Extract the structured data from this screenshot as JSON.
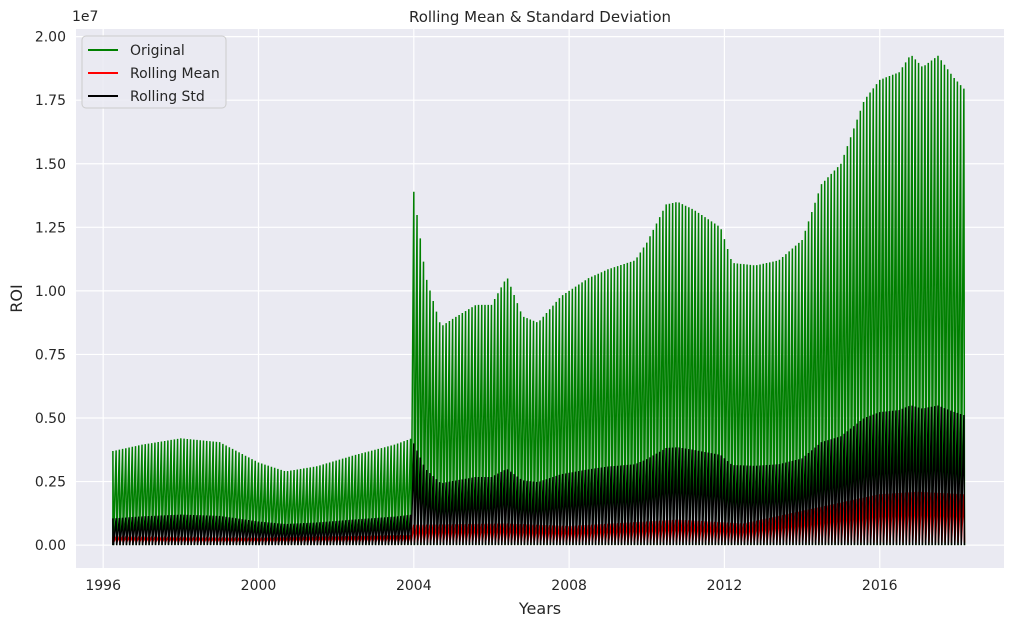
{
  "chart_data": {
    "type": "line",
    "title": "Rolling Mean & Standard Deviation",
    "xlabel": "Years",
    "ylabel": "ROI",
    "y_offset_label": "1e7",
    "xlim": [
      1995.3,
      2019.2
    ],
    "ylim": [
      -0.09,
      2.03
    ],
    "y_scale": 10000000,
    "x_ticks": [
      "1996",
      "2000",
      "2004",
      "2008",
      "2012",
      "2016"
    ],
    "y_ticks": [
      "0.00",
      "0.25",
      "0.50",
      "0.75",
      "1.00",
      "1.25",
      "1.50",
      "1.75",
      "2.00"
    ],
    "grid": true,
    "legend_position": "upper-left",
    "background": "#eaeaf2",
    "series": [
      {
        "name": "Original",
        "color": "#008000",
        "style": "dense-oscillating",
        "floor": 0,
        "envelope_x": [
          1996.25,
          1997.0,
          1998.0,
          1999.0,
          2000.0,
          2000.7,
          2001.5,
          2002.5,
          2003.5,
          2003.95,
          2004.0,
          2004.3,
          2004.7,
          2005.0,
          2005.6,
          2006.0,
          2006.4,
          2006.8,
          2007.2,
          2007.8,
          2008.5,
          2009.0,
          2009.7,
          2010.0,
          2010.5,
          2010.8,
          2011.2,
          2011.9,
          2012.2,
          2012.8,
          2013.4,
          2014.0,
          2014.5,
          2015.0,
          2015.6,
          2016.0,
          2016.5,
          2016.8,
          2017.1,
          2017.5,
          2017.9,
          2018.2
        ],
        "envelope_y": [
          0.37,
          0.395,
          0.42,
          0.405,
          0.325,
          0.29,
          0.31,
          0.355,
          0.395,
          0.42,
          1.39,
          1.06,
          0.86,
          0.89,
          0.945,
          0.945,
          1.055,
          0.9,
          0.875,
          0.98,
          1.05,
          1.085,
          1.12,
          1.19,
          1.34,
          1.35,
          1.32,
          1.25,
          1.11,
          1.1,
          1.12,
          1.2,
          1.42,
          1.5,
          1.75,
          1.83,
          1.86,
          1.93,
          1.88,
          1.925,
          1.84,
          1.79
        ]
      },
      {
        "name": "Rolling Mean",
        "color": "#ff0000",
        "style": "dense-oscillating",
        "floor": 0.01,
        "envelope_x": [
          1996.25,
          2000.0,
          2003.95,
          2004.0,
          2006.4,
          2008.0,
          2010.8,
          2012.5,
          2016.0,
          2017.0,
          2018.2
        ],
        "envelope_y": [
          0.033,
          0.028,
          0.04,
          0.08,
          0.085,
          0.075,
          0.1,
          0.085,
          0.2,
          0.21,
          0.2
        ]
      },
      {
        "name": "Rolling Std",
        "color": "#000000",
        "style": "dense-oscillating",
        "floor": 0,
        "envelope_x": [
          1996.25,
          1997.0,
          1998.0,
          1999.0,
          2000.0,
          2000.7,
          2001.5,
          2002.5,
          2003.5,
          2003.95,
          2004.0,
          2004.3,
          2004.7,
          2005.0,
          2005.6,
          2006.0,
          2006.4,
          2006.8,
          2007.2,
          2007.8,
          2008.5,
          2009.0,
          2009.7,
          2010.0,
          2010.5,
          2010.8,
          2011.2,
          2011.9,
          2012.2,
          2012.8,
          2013.4,
          2014.0,
          2014.5,
          2015.0,
          2015.6,
          2016.0,
          2016.5,
          2016.8,
          2017.1,
          2017.5,
          2017.9,
          2018.2
        ],
        "envelope_y": [
          0.105,
          0.113,
          0.12,
          0.115,
          0.093,
          0.083,
          0.089,
          0.101,
          0.112,
          0.12,
          0.4,
          0.3,
          0.243,
          0.252,
          0.268,
          0.268,
          0.3,
          0.255,
          0.248,
          0.279,
          0.298,
          0.309,
          0.318,
          0.338,
          0.382,
          0.385,
          0.375,
          0.355,
          0.315,
          0.312,
          0.318,
          0.341,
          0.405,
          0.428,
          0.5,
          0.523,
          0.531,
          0.55,
          0.537,
          0.549,
          0.525,
          0.51
        ]
      }
    ]
  }
}
